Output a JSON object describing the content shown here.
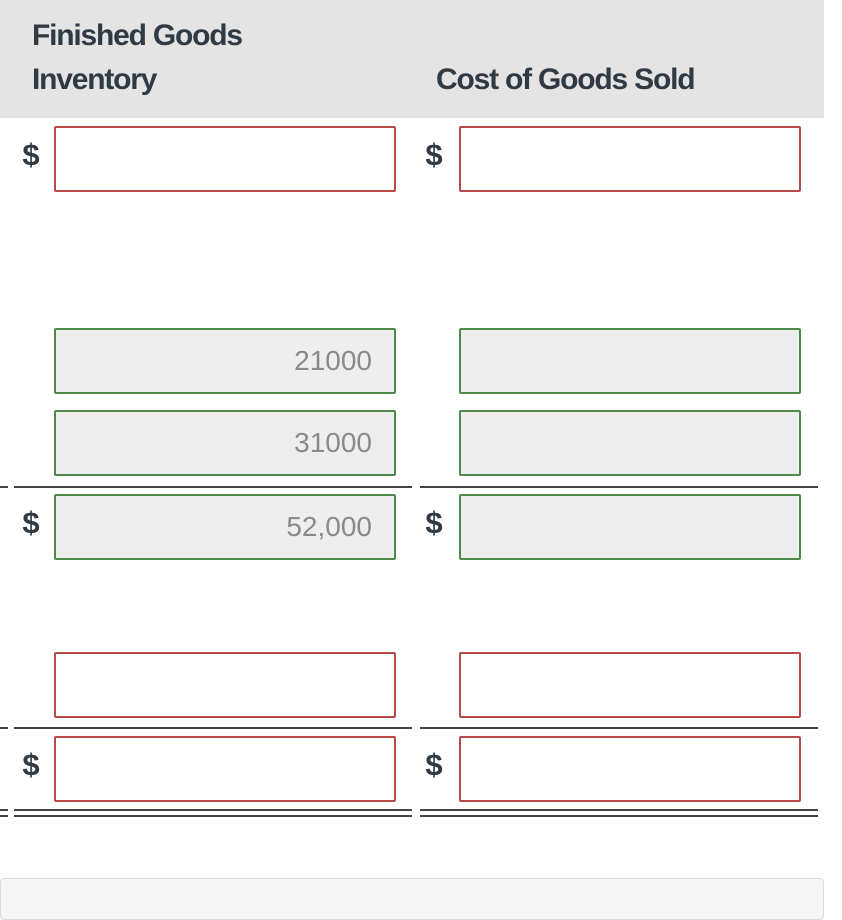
{
  "headers": {
    "finished_goods_line1": "Finished Goods",
    "finished_goods_line2": "Inventory",
    "cost_of_goods_sold": "Cost of Goods Sold"
  },
  "currency_symbol": "$",
  "rows": {
    "r1": {
      "fg": "",
      "cogs": ""
    },
    "r2": {
      "fg": "21000",
      "cogs": ""
    },
    "r3": {
      "fg": "31000",
      "cogs": ""
    },
    "r4": {
      "fg": "52,000",
      "cogs": ""
    },
    "r5": {
      "fg": "",
      "cogs": ""
    },
    "r6": {
      "fg": "",
      "cogs": ""
    }
  },
  "colors": {
    "header_bg": "#e4e4e4",
    "empty_border": "#b84a4a",
    "filled_border": "#4e8a4e",
    "filled_bg": "#eeeeee"
  }
}
